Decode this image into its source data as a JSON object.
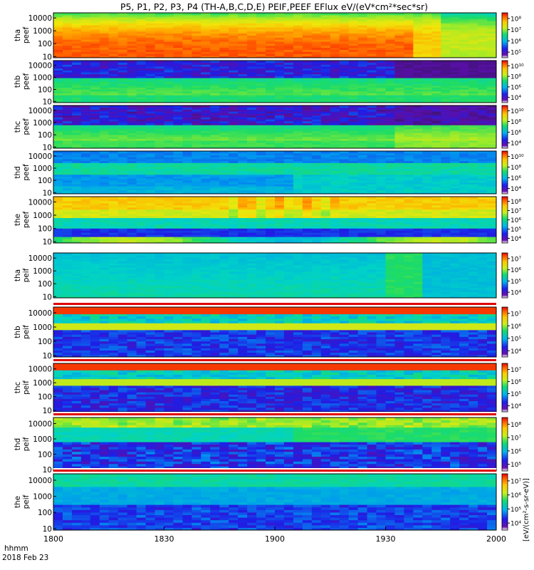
{
  "chart_data": {
    "type": "heatmap",
    "title": "P5, P1, P2, P3, P4 (TH-A,B,C,D,E) PEIF,PEEF EFlux eV/(eV*cm²*sec*sr)",
    "x_label_time": "hhmm",
    "x_label_date": "2018 Feb 23",
    "x_ticks": [
      "1800",
      "1830",
      "1900",
      "1930",
      "2000"
    ],
    "x_range": [
      "1800",
      "2000"
    ],
    "y_scale": "log",
    "y_ticks": [
      "10",
      "100",
      "1000",
      "10000"
    ],
    "y_range": [
      8,
      25000
    ],
    "colorbar_unit": "[eV/(cm²-s-sr-eV)]",
    "panels": [
      {
        "label": [
          "tha",
          "peef"
        ],
        "species": "electron",
        "cb_ticks": [
          "10⁵",
          "10⁶",
          "10⁷",
          "10⁸"
        ]
      },
      {
        "label": [
          "thb",
          "peef"
        ],
        "species": "electron",
        "cb_ticks": [
          "10⁴",
          "10⁶",
          "10⁸",
          "10¹⁰"
        ]
      },
      {
        "label": [
          "thc",
          "peef"
        ],
        "species": "electron",
        "cb_ticks": [
          "10⁴",
          "10⁶",
          "10⁸",
          "10¹⁰"
        ]
      },
      {
        "label": [
          "thd",
          "peef"
        ],
        "species": "electron",
        "cb_ticks": [
          "10⁴",
          "10⁶",
          "10⁸",
          "10¹⁰"
        ]
      },
      {
        "label": [
          "the",
          "peef"
        ],
        "species": "electron",
        "cb_ticks": [
          "10⁴",
          "10⁵",
          "10⁶",
          "10⁷",
          "10⁸"
        ]
      },
      {
        "label": [
          "tha",
          "peif"
        ],
        "species": "ion",
        "cb_ticks": [
          "10⁴",
          "10⁵",
          "10⁶",
          "10⁷"
        ]
      },
      {
        "label": [
          "thb",
          "peif"
        ],
        "species": "ion",
        "cb_ticks": [
          "10⁴",
          "10⁵",
          "10⁶",
          "10⁷"
        ]
      },
      {
        "label": [
          "thc",
          "peif"
        ],
        "species": "ion",
        "cb_ticks": [
          "10⁴",
          "10⁵",
          "10⁶",
          "10⁷"
        ]
      },
      {
        "label": [
          "thd",
          "peif"
        ],
        "species": "ion",
        "cb_ticks": [
          "10⁵",
          "10⁶",
          "10⁷",
          "10⁸"
        ]
      },
      {
        "label": [
          "the",
          "peif"
        ],
        "species": "ion",
        "cb_ticks": [
          "10⁴",
          "10⁵",
          "10⁶",
          "10⁷"
        ]
      }
    ]
  }
}
